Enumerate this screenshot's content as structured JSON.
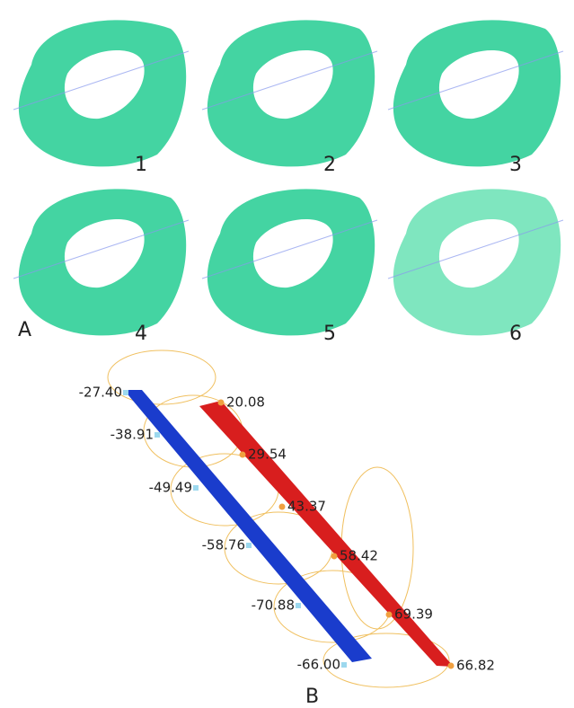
{
  "panel_a": {
    "label": "A",
    "rings": [
      "1",
      "2",
      "3",
      "4",
      "5",
      "6"
    ]
  },
  "panel_b": {
    "label": "B",
    "left_values": [
      "-27.40",
      "-38.91",
      "-49.49",
      "-58.76",
      "-70.88",
      "-66.00"
    ],
    "right_values": [
      "20.08",
      "29.54",
      "43.37",
      "58.42",
      "69.39",
      "66.82"
    ]
  }
}
